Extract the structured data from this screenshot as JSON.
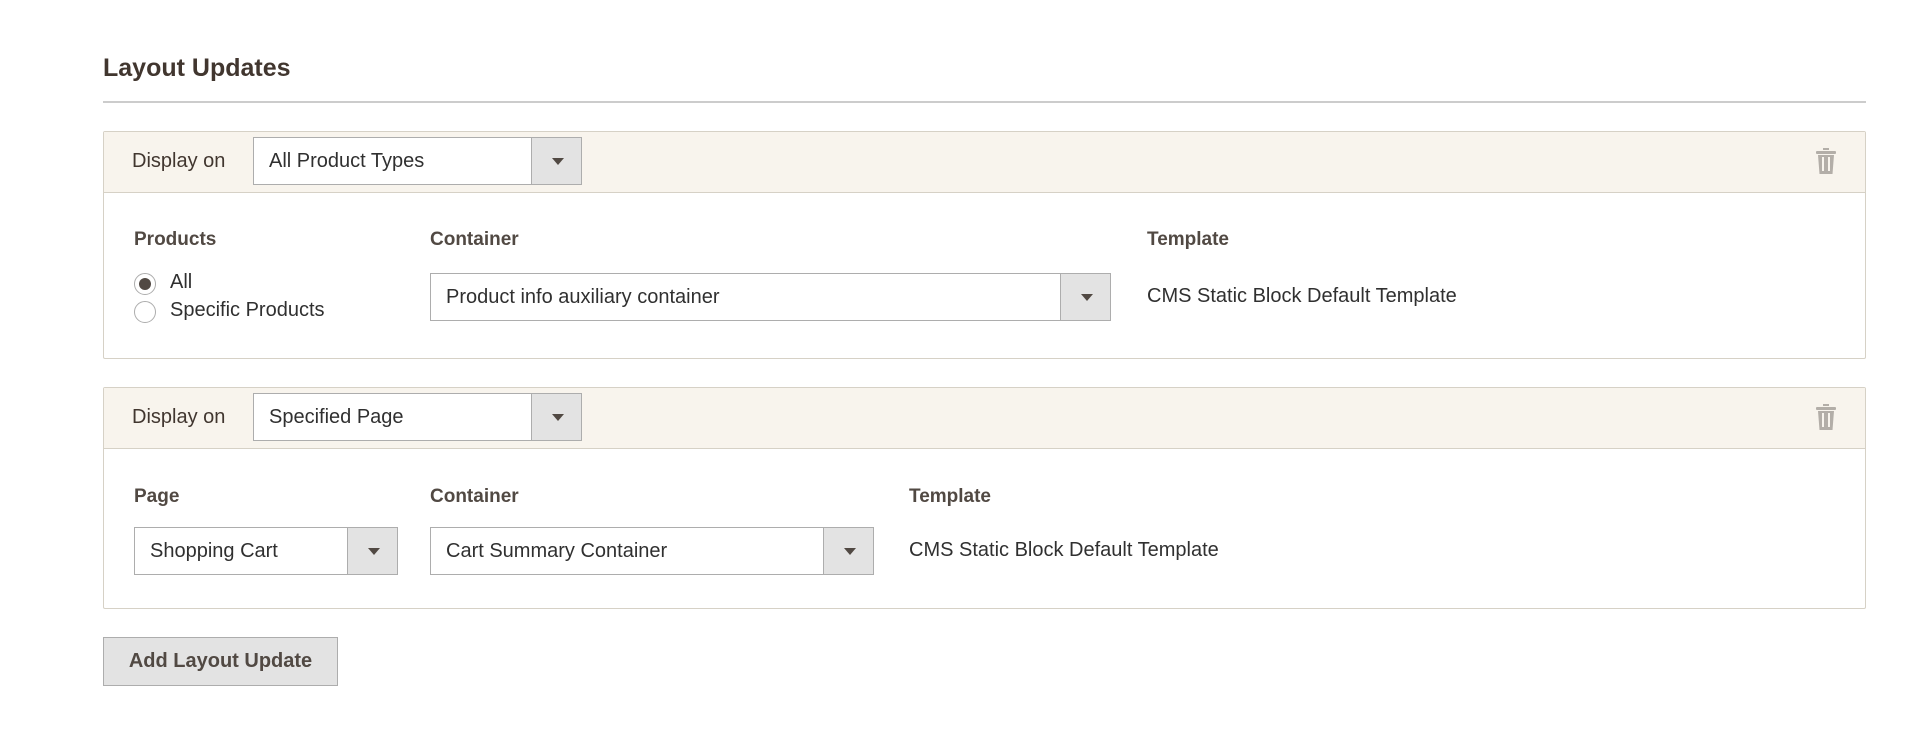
{
  "section_title": "Layout Updates",
  "updates": [
    {
      "display_on_label": "Display on",
      "display_on_value": "All Product Types",
      "products_label": "Products",
      "radio_options": [
        {
          "label": "All",
          "checked": true
        },
        {
          "label": "Specific Products",
          "checked": false
        }
      ],
      "container_label": "Container",
      "container_value": "Product info auxiliary container",
      "template_label": "Template",
      "template_value": "CMS Static Block Default Template",
      "delete_icon": "trash-icon"
    },
    {
      "display_on_label": "Display on",
      "display_on_value": "Specified Page",
      "page_label": "Page",
      "page_value": "Shopping Cart",
      "container_label": "Container",
      "container_value": "Cart Summary Container",
      "template_label": "Template",
      "template_value": "CMS Static Block Default Template",
      "delete_icon": "trash-icon"
    }
  ],
  "add_button_label": "Add Layout Update",
  "colors": {
    "header_bg": "#f8f4ed",
    "label": "#514943",
    "button_bg": "#e3e3e3"
  }
}
